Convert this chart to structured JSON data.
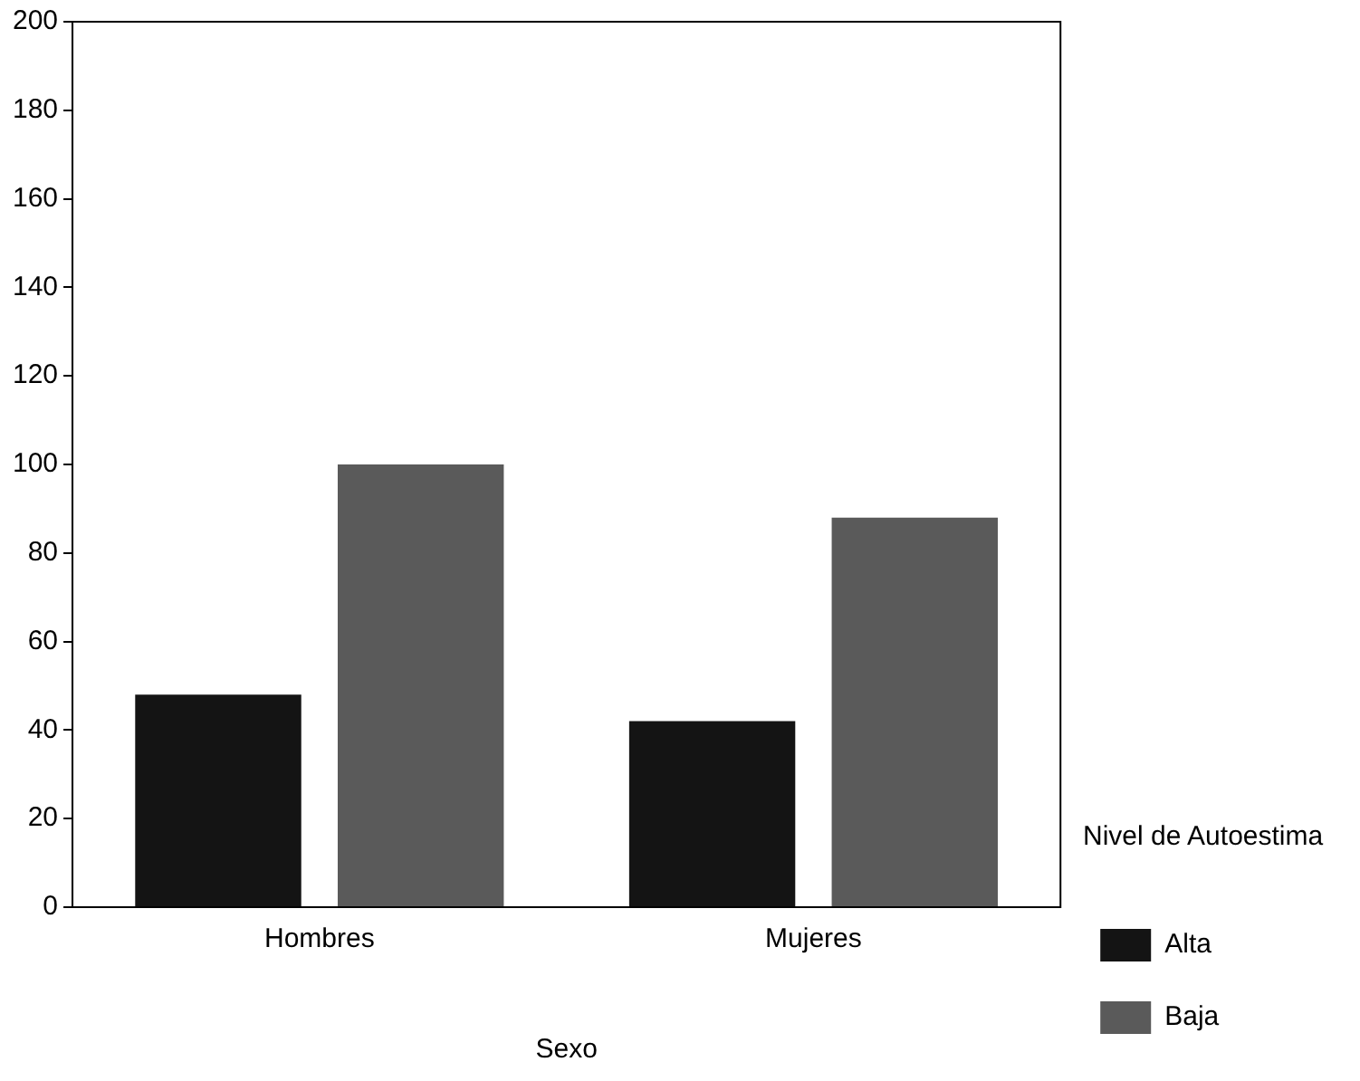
{
  "chart_data": {
    "type": "bar",
    "xlabel": "Sexo",
    "legend_title": "Nivel de Autoestima",
    "categories": [
      "Hombres",
      "Mujeres"
    ],
    "series": [
      {
        "name": "Alta",
        "color": "#141414",
        "values": [
          48,
          42
        ]
      },
      {
        "name": "Baja",
        "color": "#5a5a5a",
        "values": [
          100,
          88
        ]
      }
    ],
    "ylim": [
      0,
      200
    ],
    "yticks": [
      0,
      20,
      40,
      60,
      80,
      100,
      120,
      140,
      160,
      180,
      200
    ],
    "grid": false,
    "legend": "right"
  }
}
